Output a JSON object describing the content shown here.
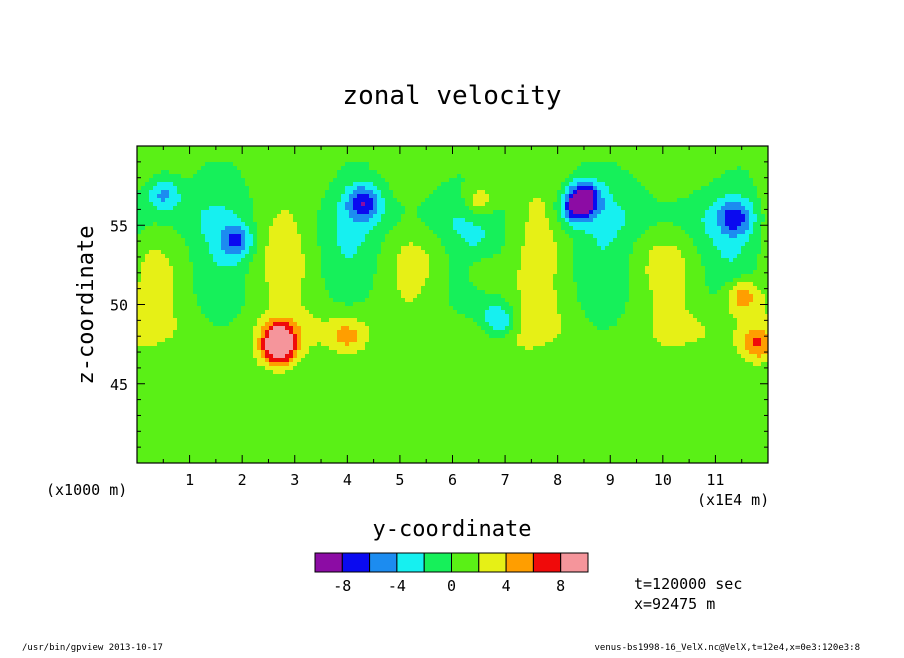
{
  "chart_data": {
    "type": "heatmap",
    "title": "zonal velocity",
    "xlabel": "y-coordinate",
    "ylabel": "z-coordinate",
    "x_unit_label": "(x1E4 m)",
    "y_unit_label": "(x1000 m)",
    "xlim": [
      0,
      12
    ],
    "ylim": [
      40,
      60
    ],
    "x_ticks": [
      "1",
      "2",
      "3",
      "4",
      "5",
      "6",
      "7",
      "8",
      "9",
      "10",
      "11"
    ],
    "y_ticks": [
      "45",
      "50",
      "55"
    ],
    "colorbar": {
      "levels": [
        -10,
        -8,
        -6,
        -4,
        -2,
        0,
        2,
        4,
        6,
        8,
        10
      ],
      "tick_labels": [
        "-8",
        "-4",
        "0",
        "4",
        "8"
      ],
      "colors": [
        "#8c0ca4",
        "#0a0af0",
        "#1c8cf0",
        "#16f0f0",
        "#16f05a",
        "#5af016",
        "#e6f016",
        "#ff9e00",
        "#f00a0a",
        "#f5959b"
      ]
    },
    "features": [
      {
        "y": 8.5,
        "z": 56.7,
        "value": -8.5
      },
      {
        "y": 8.3,
        "z": 56.0,
        "value": -5
      },
      {
        "y": 4.3,
        "z": 56.5,
        "value": -6
      },
      {
        "y": 1.9,
        "z": 54.0,
        "value": -5
      },
      {
        "y": 2.7,
        "z": 47.2,
        "value": 8.5
      },
      {
        "y": 2.7,
        "z": 48.0,
        "value": 6
      },
      {
        "y": 6.5,
        "z": 56.5,
        "value": 5
      },
      {
        "y": 6.6,
        "z": 52.0,
        "value": 3.5
      },
      {
        "y": 11.4,
        "z": 55.5,
        "value": -5
      },
      {
        "y": 11.5,
        "z": 50.5,
        "value": 6
      },
      {
        "y": 11.8,
        "z": 47.5,
        "value": 5.5
      },
      {
        "y": 6.9,
        "z": 49.0,
        "value": -5
      },
      {
        "y": 0.5,
        "z": 57.0,
        "value": -4.5
      },
      {
        "y": 4.0,
        "z": 48.0,
        "value": 4
      }
    ]
  },
  "annotations": {
    "time": "t=120000 sec",
    "position": "x=92475 m",
    "footer_left": "/usr/bin/gpview  2013-10-17",
    "footer_right": "venus-bs1998-16_VelX.nc@VelX,t=12e4,x=0e3:120e3:8"
  }
}
